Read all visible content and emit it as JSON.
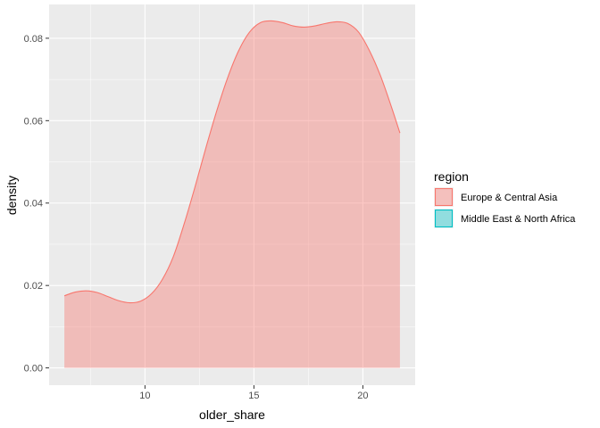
{
  "chart_data": {
    "type": "area",
    "plot": "density",
    "xlabel": "older_share",
    "ylabel": "density",
    "xlim": [
      5.6,
      22.4
    ],
    "ylim": [
      -0.0042,
      0.0882
    ],
    "x_ticks": [
      10,
      15,
      20
    ],
    "x_tick_labels": [
      "10",
      "15",
      "20"
    ],
    "y_ticks": [
      0.0,
      0.02,
      0.04,
      0.06,
      0.08
    ],
    "y_tick_labels": [
      "0.00",
      "0.02",
      "0.04",
      "0.06",
      "0.08"
    ],
    "grid": true,
    "legend": {
      "title": "region",
      "position": "right",
      "entries": [
        {
          "name": "Europe & Central Asia",
          "color": "#F8766D"
        },
        {
          "name": "Middle East & North Africa",
          "color": "#00BFC4"
        }
      ]
    },
    "series": [
      {
        "name": "Europe & Central Asia",
        "color": "#F8766D",
        "fill_alpha": 0.4,
        "x": [
          6.3,
          6.8,
          7.3,
          7.8,
          8.3,
          8.8,
          9.3,
          9.8,
          10.3,
          10.8,
          11.3,
          11.8,
          12.3,
          12.8,
          13.3,
          13.8,
          14.3,
          14.8,
          15.3,
          15.8,
          16.3,
          16.8,
          17.3,
          17.8,
          18.3,
          18.8,
          19.3,
          19.8,
          20.3,
          20.8,
          21.3,
          21.7
        ],
        "y": [
          0.0175,
          0.0184,
          0.0187,
          0.0183,
          0.0173,
          0.0163,
          0.0158,
          0.0162,
          0.018,
          0.0215,
          0.027,
          0.035,
          0.044,
          0.0535,
          0.0625,
          0.0705,
          0.077,
          0.0815,
          0.0838,
          0.0842,
          0.0838,
          0.083,
          0.0827,
          0.083,
          0.0836,
          0.084,
          0.0836,
          0.0815,
          0.077,
          0.071,
          0.0635,
          0.057
        ]
      },
      {
        "name": "Middle East & North Africa",
        "color": "#00BFC4",
        "fill_alpha": 0.4,
        "x": [],
        "y": []
      }
    ]
  }
}
